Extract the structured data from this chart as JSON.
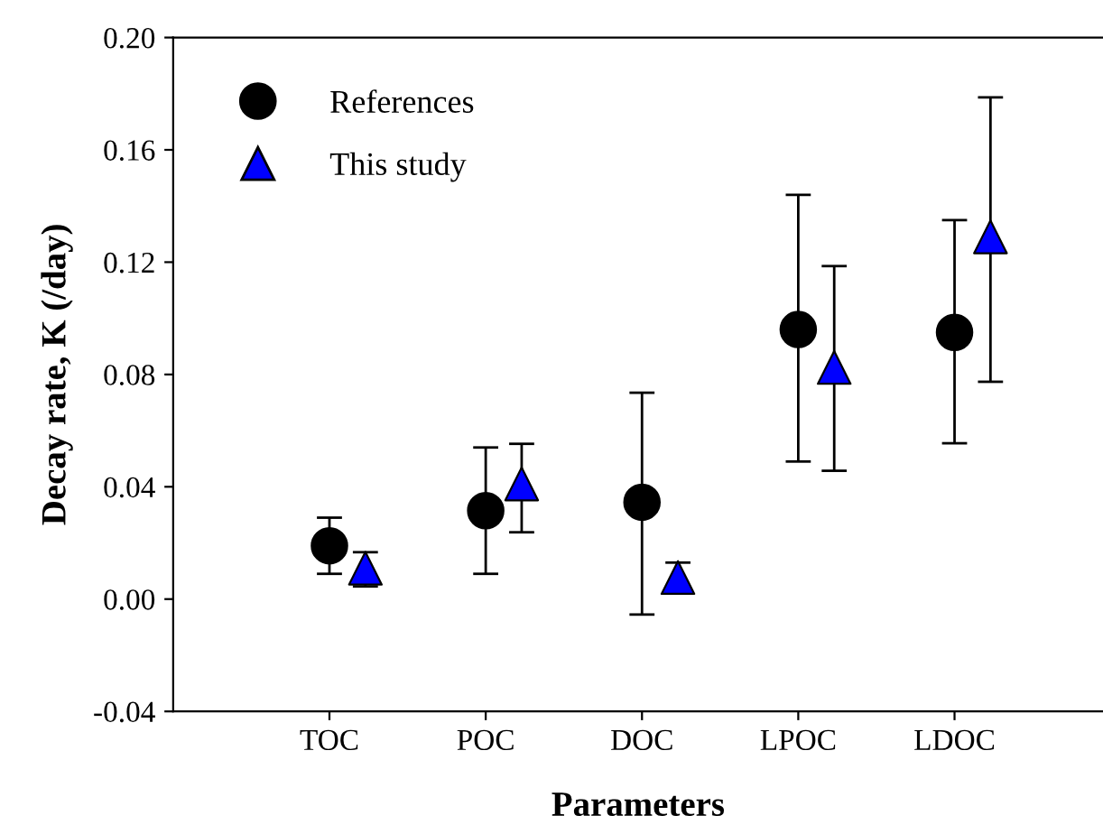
{
  "chart_data": {
    "type": "scatter",
    "xlabel": "Parameters",
    "ylabel": "Decay rate, K (/day)",
    "categories": [
      "TOC",
      "POC",
      "DOC",
      "LPOC",
      "LDOC"
    ],
    "series": [
      {
        "name": "References",
        "color": "#000000",
        "marker": "circle",
        "values": [
          0.019,
          0.0315,
          0.0345,
          0.096,
          0.095
        ],
        "errors": [
          [
            0.009,
            0.029
          ],
          [
            0.009,
            0.054
          ],
          [
            -0.0055,
            0.0735
          ],
          [
            0.049,
            0.144
          ],
          [
            0.0555,
            0.135
          ]
        ]
      },
      {
        "name": "This study",
        "color": "#0000ff",
        "marker": "triangle",
        "values": [
          0.011,
          0.041,
          0.0077,
          0.0825,
          0.129
        ],
        "errors": [
          [
            0.0045,
            0.0167
          ],
          [
            0.0238,
            0.0553
          ],
          [
            0.0024,
            0.013
          ],
          [
            0.0457,
            0.1186
          ],
          [
            0.0774,
            0.1787
          ]
        ]
      }
    ],
    "ylim": [
      -0.04,
      0.2
    ],
    "yticks": [
      {
        "value": -0.04,
        "label": "-0.04"
      },
      {
        "value": 0,
        "label": "0.00"
      },
      {
        "value": 0.04,
        "label": "0.04"
      },
      {
        "value": 0.08,
        "label": "0.08"
      },
      {
        "value": 0.12,
        "label": "0.12"
      },
      {
        "value": 0.16,
        "label": "0.16"
      },
      {
        "value": 0.2,
        "label": "0.20"
      }
    ],
    "grid": false,
    "legend": "top left"
  }
}
